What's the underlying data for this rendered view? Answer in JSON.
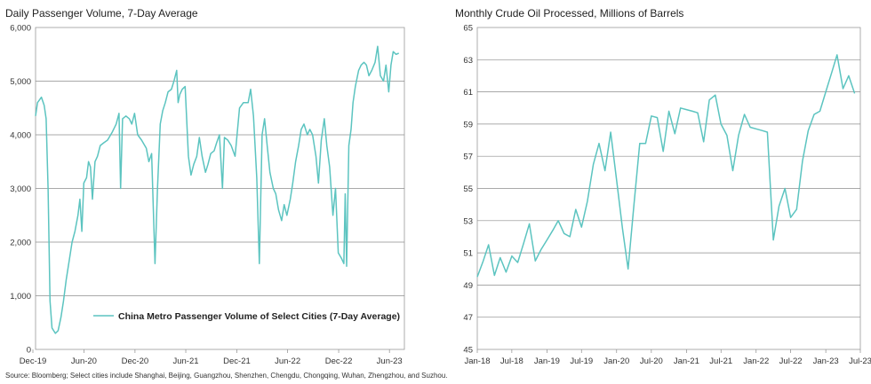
{
  "chart_data": [
    {
      "type": "line",
      "title": "Daily Passenger Volume, 7-Day Average",
      "xlabel": "",
      "ylabel": "",
      "x_ticks": [
        "Dec-19",
        "Jun-20",
        "Dec-20",
        "Jun-21",
        "Dec-21",
        "Jun-22",
        "Dec-22",
        "Jun-23"
      ],
      "y_ticks": [
        "0",
        "1,000",
        "2,000",
        "3,000",
        "4,000",
        "5,000",
        "6,000"
      ],
      "ylim": [
        0,
        6000
      ],
      "grid": "horizontal",
      "legend": "bottom-center",
      "color": "#5cc4c0",
      "series": [
        {
          "name": "China Metro Passenger Volume of Select Cities (7-Day Average)",
          "points": [
            [
              "2019-12-01",
              4350
            ],
            [
              "2019-12-08",
              4600
            ],
            [
              "2019-12-15",
              4650
            ],
            [
              "2019-12-22",
              4700
            ],
            [
              "2020-01-01",
              4550
            ],
            [
              "2020-01-08",
              4300
            ],
            [
              "2020-01-15",
              3000
            ],
            [
              "2020-01-22",
              900
            ],
            [
              "2020-01-29",
              400
            ],
            [
              "2020-02-10",
              300
            ],
            [
              "2020-02-20",
              350
            ],
            [
              "2020-03-01",
              600
            ],
            [
              "2020-03-10",
              900
            ],
            [
              "2020-03-20",
              1300
            ],
            [
              "2020-04-01",
              1700
            ],
            [
              "2020-04-10",
              2000
            ],
            [
              "2020-04-20",
              2200
            ],
            [
              "2020-05-01",
              2500
            ],
            [
              "2020-05-08",
              2800
            ],
            [
              "2020-05-15",
              2200
            ],
            [
              "2020-05-22",
              3100
            ],
            [
              "2020-06-01",
              3200
            ],
            [
              "2020-06-08",
              3500
            ],
            [
              "2020-06-15",
              3400
            ],
            [
              "2020-06-22",
              2800
            ],
            [
              "2020-07-01",
              3500
            ],
            [
              "2020-07-10",
              3600
            ],
            [
              "2020-07-20",
              3800
            ],
            [
              "2020-08-01",
              3850
            ],
            [
              "2020-08-15",
              3900
            ],
            [
              "2020-09-01",
              4050
            ],
            [
              "2020-09-15",
              4200
            ],
            [
              "2020-09-25",
              4400
            ],
            [
              "2020-10-01",
              3000
            ],
            [
              "2020-10-08",
              4300
            ],
            [
              "2020-10-20",
              4350
            ],
            [
              "2020-11-01",
              4300
            ],
            [
              "2020-11-10",
              4200
            ],
            [
              "2020-11-20",
              4400
            ],
            [
              "2020-12-01",
              4000
            ],
            [
              "2020-12-15",
              3900
            ],
            [
              "2021-01-01",
              3750
            ],
            [
              "2021-01-10",
              3500
            ],
            [
              "2021-01-20",
              3650
            ],
            [
              "2021-02-01",
              1600
            ],
            [
              "2021-02-10",
              3000
            ],
            [
              "2021-02-20",
              4200
            ],
            [
              "2021-03-01",
              4450
            ],
            [
              "2021-03-10",
              4600
            ],
            [
              "2021-03-20",
              4800
            ],
            [
              "2021-04-01",
              4850
            ],
            [
              "2021-04-10",
              5000
            ],
            [
              "2021-04-20",
              5200
            ],
            [
              "2021-04-25",
              4600
            ],
            [
              "2021-05-01",
              4750
            ],
            [
              "2021-05-10",
              4850
            ],
            [
              "2021-05-20",
              4900
            ],
            [
              "2021-06-01",
              3600
            ],
            [
              "2021-06-10",
              3250
            ],
            [
              "2021-06-20",
              3450
            ],
            [
              "2021-07-01",
              3600
            ],
            [
              "2021-07-10",
              3950
            ],
            [
              "2021-07-20",
              3600
            ],
            [
              "2021-08-01",
              3300
            ],
            [
              "2021-08-10",
              3450
            ],
            [
              "2021-08-20",
              3650
            ],
            [
              "2021-09-01",
              3700
            ],
            [
              "2021-09-10",
              3850
            ],
            [
              "2021-09-20",
              4000
            ],
            [
              "2021-10-01",
              3000
            ],
            [
              "2021-10-08",
              3950
            ],
            [
              "2021-10-20",
              3900
            ],
            [
              "2021-11-01",
              3800
            ],
            [
              "2021-11-15",
              3600
            ],
            [
              "2021-12-01",
              4500
            ],
            [
              "2021-12-15",
              4600
            ],
            [
              "2022-01-01",
              4600
            ],
            [
              "2022-01-10",
              4850
            ],
            [
              "2022-01-20",
              4350
            ],
            [
              "2022-02-01",
              3200
            ],
            [
              "2022-02-10",
              1600
            ],
            [
              "2022-02-20",
              4000
            ],
            [
              "2022-03-01",
              4300
            ],
            [
              "2022-03-10",
              3800
            ],
            [
              "2022-03-20",
              3300
            ],
            [
              "2022-04-01",
              3000
            ],
            [
              "2022-04-10",
              2900
            ],
            [
              "2022-04-20",
              2600
            ],
            [
              "2022-05-01",
              2400
            ],
            [
              "2022-05-10",
              2700
            ],
            [
              "2022-05-20",
              2500
            ],
            [
              "2022-06-01",
              2800
            ],
            [
              "2022-06-10",
              3100
            ],
            [
              "2022-06-20",
              3500
            ],
            [
              "2022-07-01",
              3800
            ],
            [
              "2022-07-10",
              4100
            ],
            [
              "2022-07-20",
              4200
            ],
            [
              "2022-08-01",
              4000
            ],
            [
              "2022-08-10",
              4100
            ],
            [
              "2022-08-20",
              4000
            ],
            [
              "2022-09-01",
              3600
            ],
            [
              "2022-09-10",
              3100
            ],
            [
              "2022-09-20",
              3900
            ],
            [
              "2022-10-01",
              4300
            ],
            [
              "2022-10-10",
              3800
            ],
            [
              "2022-10-20",
              3400
            ],
            [
              "2022-11-01",
              2500
            ],
            [
              "2022-11-10",
              3000
            ],
            [
              "2022-11-20",
              1800
            ],
            [
              "2022-12-01",
              1700
            ],
            [
              "2022-12-10",
              1600
            ],
            [
              "2022-12-15",
              2900
            ],
            [
              "2022-12-20",
              1550
            ],
            [
              "2022-12-28",
              3800
            ],
            [
              "2023-01-05",
              4100
            ],
            [
              "2023-01-12",
              4600
            ],
            [
              "2023-01-20",
              4900
            ],
            [
              "2023-02-01",
              5200
            ],
            [
              "2023-02-10",
              5300
            ],
            [
              "2023-02-20",
              5350
            ],
            [
              "2023-03-01",
              5300
            ],
            [
              "2023-03-10",
              5100
            ],
            [
              "2023-03-20",
              5200
            ],
            [
              "2023-04-01",
              5350
            ],
            [
              "2023-04-10",
              5650
            ],
            [
              "2023-04-20",
              5100
            ],
            [
              "2023-05-01",
              5000
            ],
            [
              "2023-05-10",
              5300
            ],
            [
              "2023-05-20",
              4800
            ],
            [
              "2023-05-28",
              5300
            ],
            [
              "2023-06-05",
              5550
            ],
            [
              "2023-06-15",
              5500
            ],
            [
              "2023-06-25",
              5520
            ]
          ]
        }
      ]
    },
    {
      "type": "line",
      "title": "Monthly Crude Oil Processed, Millions of Barrels",
      "xlabel": "",
      "ylabel": "",
      "x_ticks": [
        "Jan-18",
        "Jul-18",
        "Jan-19",
        "Jul-19",
        "Jan-20",
        "Jul-20",
        "Jan-21",
        "Jul-21",
        "Jan-22",
        "Jul-22",
        "Jan-23",
        "Jul-23"
      ],
      "y_ticks": [
        "45",
        "47",
        "49",
        "51",
        "53",
        "55",
        "57",
        "59",
        "61",
        "63",
        "65"
      ],
      "ylim": [
        45,
        65
      ],
      "grid": "horizontal",
      "legend": "none",
      "color": "#5cc4c0",
      "series": [
        {
          "name": "",
          "points": [
            [
              "2018-01",
              49.5
            ],
            [
              "2018-02",
              50.5
            ],
            [
              "2018-03",
              51.5
            ],
            [
              "2018-04",
              49.6
            ],
            [
              "2018-05",
              50.7
            ],
            [
              "2018-06",
              49.8
            ],
            [
              "2018-07",
              50.8
            ],
            [
              "2018-08",
              50.4
            ],
            [
              "2018-09",
              51.6
            ],
            [
              "2018-10",
              52.8
            ],
            [
              "2018-11",
              50.5
            ],
            [
              "2018-12",
              51.2
            ],
            [
              "2019-01",
              51.8
            ],
            [
              "2019-02",
              52.4
            ],
            [
              "2019-03",
              53.0
            ],
            [
              "2019-04",
              52.2
            ],
            [
              "2019-05",
              52.0
            ],
            [
              "2019-06",
              53.7
            ],
            [
              "2019-07",
              52.6
            ],
            [
              "2019-08",
              54.2
            ],
            [
              "2019-09",
              56.5
            ],
            [
              "2019-10",
              57.8
            ],
            [
              "2019-11",
              56.1
            ],
            [
              "2019-12",
              58.5
            ],
            [
              "2020-01",
              55.5
            ],
            [
              "2020-02",
              52.5
            ],
            [
              "2020-03",
              50.0
            ],
            [
              "2020-04",
              54.0
            ],
            [
              "2020-05",
              57.8
            ],
            [
              "2020-06",
              57.8
            ],
            [
              "2020-07",
              59.5
            ],
            [
              "2020-08",
              59.4
            ],
            [
              "2020-09",
              57.3
            ],
            [
              "2020-10",
              59.8
            ],
            [
              "2020-11",
              58.4
            ],
            [
              "2020-12",
              60.0
            ],
            [
              "2021-01",
              59.9
            ],
            [
              "2021-02",
              59.8
            ],
            [
              "2021-03",
              59.7
            ],
            [
              "2021-04",
              57.9
            ],
            [
              "2021-05",
              60.5
            ],
            [
              "2021-06",
              60.8
            ],
            [
              "2021-07",
              59.0
            ],
            [
              "2021-08",
              58.3
            ],
            [
              "2021-09",
              56.1
            ],
            [
              "2021-10",
              58.3
            ],
            [
              "2021-11",
              59.6
            ],
            [
              "2021-12",
              58.8
            ],
            [
              "2022-01",
              58.7
            ],
            [
              "2022-02",
              58.6
            ],
            [
              "2022-03",
              58.5
            ],
            [
              "2022-04",
              51.8
            ],
            [
              "2022-05",
              53.9
            ],
            [
              "2022-06",
              55.0
            ],
            [
              "2022-07",
              53.2
            ],
            [
              "2022-08",
              53.7
            ],
            [
              "2022-09",
              56.7
            ],
            [
              "2022-10",
              58.6
            ],
            [
              "2022-11",
              59.6
            ],
            [
              "2022-12",
              59.8
            ],
            [
              "2023-01",
              61.0
            ],
            [
              "2023-02",
              62.2
            ],
            [
              "2023-03",
              63.3
            ],
            [
              "2023-04",
              61.2
            ],
            [
              "2023-05",
              62.0
            ],
            [
              "2023-06",
              60.9
            ]
          ]
        }
      ]
    }
  ],
  "left_chart": {
    "title": "Daily Passenger Volume, 7-Day Average"
  },
  "right_chart": {
    "title": "Monthly Crude Oil Processed, Millions of Barrels"
  },
  "source_note": "Source: Bloomberg; Select cities include Shanghai, Beijing, Guangzhou, Shenzhen, Chengdu, Chongqing, Wuhan, Zhengzhou, and Suzhou."
}
